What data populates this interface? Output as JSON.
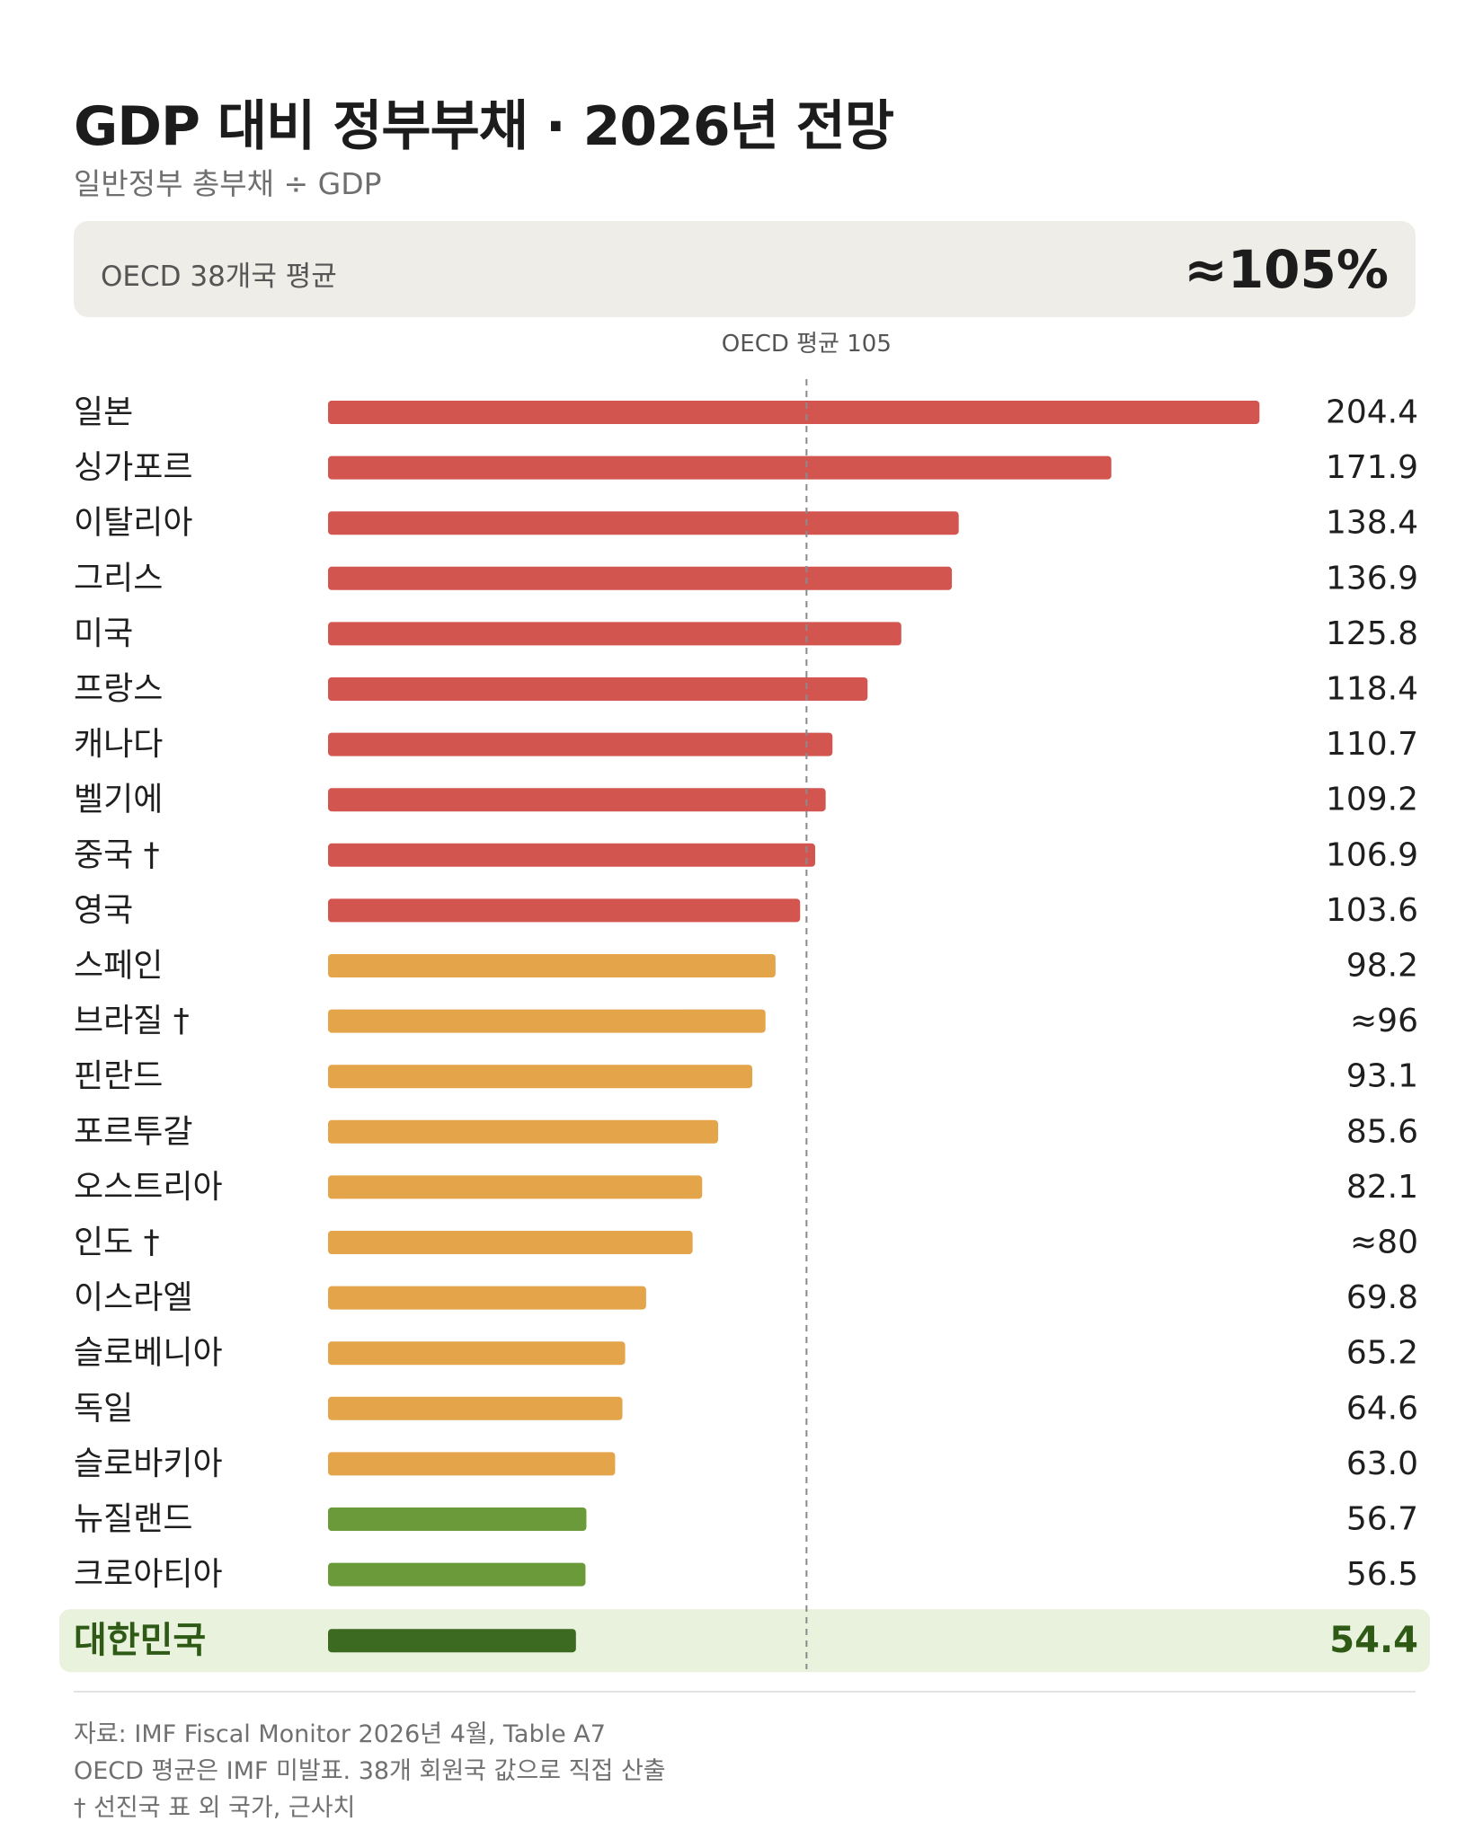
{
  "title": "GDP 대비 정부부채 · 2026년 전망",
  "subtitle": "일반정부 총부채 ÷ GDP",
  "summary": {
    "label": "OECD 38개국 평균",
    "value": "≈105%"
  },
  "colors": {
    "above_avg": "#d2564f",
    "mid": "#e3a44a",
    "low": "#6b9a3a",
    "highlight": "#3d6a21",
    "highlight_bg": "#e8f2dc"
  },
  "chart_data": {
    "type": "bar",
    "orientation": "horizontal",
    "reference_line": {
      "label": "OECD 평균 105",
      "value": 105
    },
    "xlim": [
      0,
      210
    ],
    "categories": [
      "일본",
      "싱가포르",
      "이탈리아",
      "그리스",
      "미국",
      "프랑스",
      "캐나다",
      "벨기에",
      "중국 †",
      "영국",
      "스페인",
      "브라질 †",
      "핀란드",
      "포르투갈",
      "오스트리아",
      "인도 †",
      "이스라엘",
      "슬로베니아",
      "독일",
      "슬로바키아",
      "뉴질랜드",
      "크로아티아",
      "대한민국"
    ],
    "values": [
      204.4,
      171.9,
      138.4,
      136.9,
      125.8,
      118.4,
      110.7,
      109.2,
      106.9,
      103.6,
      98.2,
      96,
      93.1,
      85.6,
      82.1,
      80,
      69.8,
      65.2,
      64.6,
      63.0,
      56.7,
      56.5,
      54.4
    ],
    "value_labels": [
      "204.4",
      "171.9",
      "138.4",
      "136.9",
      "125.8",
      "118.4",
      "110.7",
      "109.2",
      "106.9",
      "103.6",
      "98.2",
      "≈96",
      "93.1",
      "85.6",
      "82.1",
      "≈80",
      "69.8",
      "65.2",
      "64.6",
      "63.0",
      "56.7",
      "56.5",
      "54.4"
    ],
    "color_groups": [
      "above_avg",
      "above_avg",
      "above_avg",
      "above_avg",
      "above_avg",
      "above_avg",
      "above_avg",
      "above_avg",
      "above_avg",
      "above_avg",
      "mid",
      "mid",
      "mid",
      "mid",
      "mid",
      "mid",
      "mid",
      "mid",
      "mid",
      "mid",
      "low",
      "low",
      "highlight"
    ],
    "highlight": "대한민국"
  },
  "footer": {
    "source": "자료: IMF Fiscal Monitor 2026년 4월, Table A7",
    "note1": "OECD 평균은 IMF 미발표. 38개 회원국 값으로 직접 산출",
    "note2": "† 선진국 표 외 국가, 근사치"
  }
}
